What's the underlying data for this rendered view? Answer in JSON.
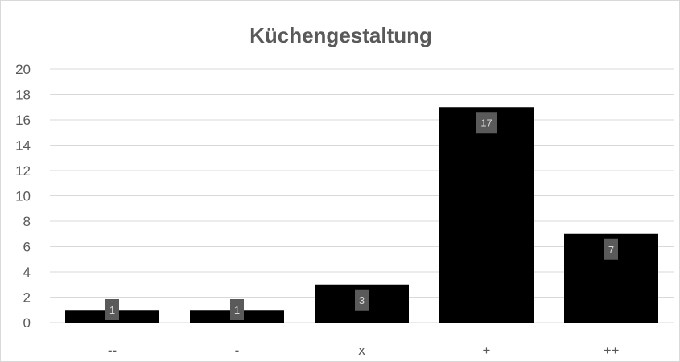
{
  "chart_data": {
    "type": "bar",
    "title": "Küchengestaltung",
    "categories": [
      "--",
      "-",
      "x",
      "+",
      "++"
    ],
    "values": [
      1,
      1,
      3,
      17,
      7
    ],
    "data_labels": [
      "1",
      "1",
      "3",
      "17",
      "7"
    ],
    "xlabel": "",
    "ylabel": "",
    "ylim": [
      0,
      20
    ],
    "yticks": [
      "0",
      "2",
      "4",
      "6",
      "8",
      "10",
      "12",
      "14",
      "16",
      "18",
      "20"
    ],
    "grid": true,
    "legend": "none",
    "colors": {
      "bar": "#000000",
      "label_box": "#5a5a5a",
      "label_text": "#d9d9d9",
      "grid": "#d9d9d9",
      "axis_text": "#595959"
    }
  }
}
